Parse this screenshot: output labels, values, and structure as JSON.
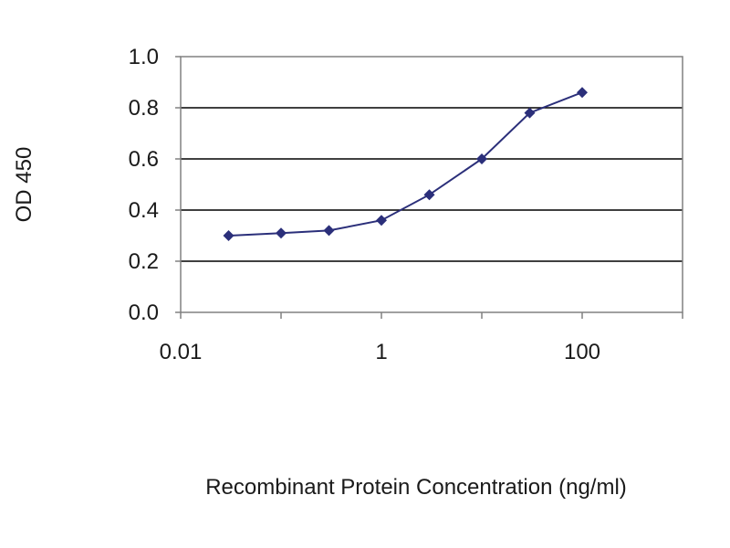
{
  "chart_data": {
    "type": "line",
    "title": "",
    "xlabel": "Recombinant Protein Concentration (ng/ml)",
    "ylabel": "OD 450",
    "x_scale": "log",
    "xlim": [
      0.01,
      1000
    ],
    "ylim": [
      0,
      1.0
    ],
    "x_ticks": [
      {
        "value": 0.01,
        "label": "0.01"
      },
      {
        "value": 1,
        "label": "1"
      },
      {
        "value": 100,
        "label": "100"
      }
    ],
    "y_ticks": [
      {
        "value": 0.0,
        "label": "0.0"
      },
      {
        "value": 0.2,
        "label": "0.2"
      },
      {
        "value": 0.4,
        "label": "0.4"
      },
      {
        "value": 0.6,
        "label": "0.6"
      },
      {
        "value": 0.8,
        "label": "0.8"
      },
      {
        "value": 1.0,
        "label": "1.0"
      }
    ],
    "grid": "horizontal",
    "legend": "none",
    "series": [
      {
        "color": "#2b2f7a",
        "marker": "diamond",
        "x": [
          0.03,
          0.1,
          0.3,
          1,
          3,
          10,
          30,
          100
        ],
        "y": [
          0.3,
          0.31,
          0.32,
          0.36,
          0.46,
          0.6,
          0.78,
          0.86
        ]
      }
    ],
    "colors": {
      "plot_border": "#808080",
      "gridline": "#000000",
      "series_line": "#2b2f7a"
    }
  }
}
